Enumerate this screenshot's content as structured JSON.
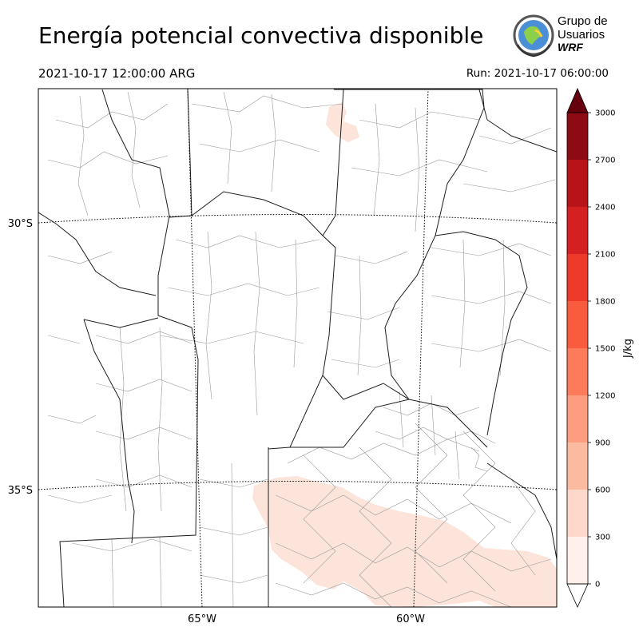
{
  "header": {
    "title": "Energía potencial convectiva disponible",
    "valid_time": "2021-10-17 12:00:00 ARG",
    "run_time": "Run: 2021-10-17 06:00:00"
  },
  "logo": {
    "line1": "Grupo de",
    "line2": "Usuarios",
    "line3": "WRF",
    "icon": "wrf-globe-emblem"
  },
  "map": {
    "lat_labels": [
      "30°S",
      "35°S"
    ],
    "lon_labels": [
      "65°W",
      "60°W"
    ]
  },
  "colorbar": {
    "label": "J/kg",
    "ticks": [
      "0",
      "300",
      "600",
      "900",
      "1200",
      "1500",
      "1800",
      "2100",
      "2400",
      "2700",
      "3000"
    ],
    "colors": [
      "#fff0eb",
      "#fed9cb",
      "#fcbba1",
      "#fc9d7f",
      "#fb7b5b",
      "#f85b3e",
      "#ee3a2b",
      "#d42020",
      "#b71319",
      "#8e0a14"
    ],
    "over_color": "#67000d"
  }
}
